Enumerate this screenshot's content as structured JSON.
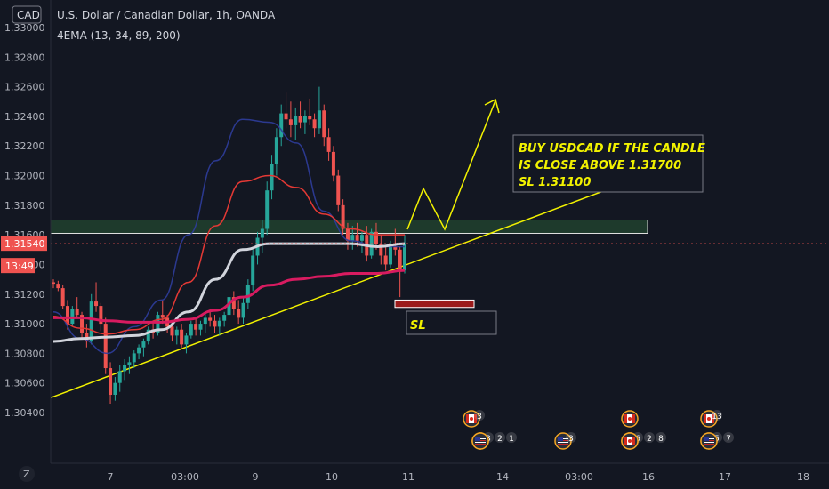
{
  "header": {
    "symbol_badge": "CAD",
    "title": "U.S. Dollar / Canadian Dollar, 1h, OANDA",
    "indicator": "4EMA (13, 34, 89, 200)"
  },
  "annotation": {
    "line1": "BUY USDCAD IF THE CANDLE",
    "line2": "IS CLOSE ABOVE  1.31700",
    "line3": "SL 1.31100",
    "sl_label": "SL"
  },
  "price_badges": {
    "last_price": "1.31540",
    "countdown": "13:49"
  },
  "footer": {
    "tv_logo": "Z"
  },
  "events": [
    {
      "label": "3",
      "slot": 0
    },
    {
      "label": "3",
      "slot": 1
    },
    {
      "label": "2",
      "slot": 1
    },
    {
      "label": "1",
      "slot": 1
    },
    {
      "label": "3",
      "slot": 2
    },
    {
      "label": "6",
      "slot": 3
    },
    {
      "label": "2",
      "slot": 3
    },
    {
      "label": "8",
      "slot": 3
    },
    {
      "label": "13",
      "slot": 4
    },
    {
      "label": "5",
      "slot": 5
    },
    {
      "label": "7",
      "slot": 5
    }
  ],
  "colors": {
    "background": "#131722",
    "candle_up": "#26a69a",
    "candle_down": "#ef5350",
    "ema13": "#2f3d9c",
    "ema34": "#e53935",
    "ema89": "#d1d4dc",
    "ema200": "#d81b60",
    "trendline": "#f2f200",
    "zone": "#1e3a2c",
    "last_price": "#ef5350"
  },
  "chart_data": {
    "type": "candlestick",
    "timeframe": "1h",
    "x_ticks": [
      "7",
      "03:00",
      "9",
      "10",
      "11",
      "14",
      "03:00",
      "16",
      "17",
      "18"
    ],
    "y_ticks": [
      1.33,
      1.328,
      1.326,
      1.324,
      1.322,
      1.32,
      1.318,
      1.316,
      1.314,
      1.312,
      1.31,
      1.308,
      1.306,
      1.304
    ],
    "y_tick_labels": [
      "1.33000",
      "1.32800",
      "1.32600",
      "1.32400",
      "1.32200",
      "1.32000",
      "1.31800",
      "1.31600",
      "1.31400",
      "1.31200",
      "1.31000",
      "1.30800",
      "1.30600",
      "1.30400"
    ],
    "ylim": [
      1.3022,
      1.3312
    ],
    "last_price": 1.3154,
    "grid": false,
    "candles": [
      [
        1.3128,
        1.313,
        1.3124,
        1.3127
      ],
      [
        1.3127,
        1.3129,
        1.3122,
        1.3124
      ],
      [
        1.3124,
        1.3126,
        1.311,
        1.3112
      ],
      [
        1.3112,
        1.3116,
        1.3096,
        1.31
      ],
      [
        1.31,
        1.3112,
        1.3098,
        1.311
      ],
      [
        1.311,
        1.3118,
        1.3104,
        1.3106
      ],
      [
        1.3106,
        1.3108,
        1.309,
        1.3094
      ],
      [
        1.3094,
        1.31,
        1.3084,
        1.3088
      ],
      [
        1.3088,
        1.312,
        1.3086,
        1.3115
      ],
      [
        1.3115,
        1.3128,
        1.3108,
        1.3112
      ],
      [
        1.3112,
        1.3114,
        1.3095,
        1.31
      ],
      [
        1.31,
        1.3104,
        1.3066,
        1.307
      ],
      [
        1.307,
        1.3074,
        1.3046,
        1.3052
      ],
      [
        1.3052,
        1.3064,
        1.3048,
        1.306
      ],
      [
        1.306,
        1.3072,
        1.3054,
        1.3068
      ],
      [
        1.3068,
        1.3076,
        1.3062,
        1.3072
      ],
      [
        1.3072,
        1.3078,
        1.3066,
        1.3074
      ],
      [
        1.3074,
        1.3082,
        1.307,
        1.308
      ],
      [
        1.308,
        1.3086,
        1.3076,
        1.3084
      ],
      [
        1.3084,
        1.309,
        1.3078,
        1.3088
      ],
      [
        1.3088,
        1.3098,
        1.3086,
        1.3096
      ],
      [
        1.3096,
        1.3102,
        1.309,
        1.3094
      ],
      [
        1.3094,
        1.3108,
        1.3092,
        1.3106
      ],
      [
        1.3106,
        1.3116,
        1.31,
        1.3104
      ],
      [
        1.3104,
        1.3106,
        1.3094,
        1.3098
      ],
      [
        1.3098,
        1.31,
        1.3088,
        1.3092
      ],
      [
        1.3092,
        1.3098,
        1.3086,
        1.3096
      ],
      [
        1.3096,
        1.31,
        1.3084,
        1.3086
      ],
      [
        1.3086,
        1.3094,
        1.308,
        1.3092
      ],
      [
        1.3092,
        1.3102,
        1.309,
        1.31
      ],
      [
        1.31,
        1.3104,
        1.3092,
        1.3096
      ],
      [
        1.3096,
        1.3102,
        1.3092,
        1.31
      ],
      [
        1.31,
        1.3108,
        1.3094,
        1.3104
      ],
      [
        1.3104,
        1.311,
        1.3098,
        1.3102
      ],
      [
        1.3102,
        1.3106,
        1.3094,
        1.3098
      ],
      [
        1.3098,
        1.3104,
        1.3092,
        1.3102
      ],
      [
        1.3102,
        1.3108,
        1.3098,
        1.3106
      ],
      [
        1.3106,
        1.3122,
        1.3102,
        1.3118
      ],
      [
        1.3118,
        1.3122,
        1.3106,
        1.311
      ],
      [
        1.311,
        1.3116,
        1.31,
        1.3104
      ],
      [
        1.3104,
        1.3118,
        1.31,
        1.3114
      ],
      [
        1.3114,
        1.313,
        1.311,
        1.3126
      ],
      [
        1.3126,
        1.315,
        1.3122,
        1.3146
      ],
      [
        1.3146,
        1.3162,
        1.314,
        1.3158
      ],
      [
        1.3158,
        1.317,
        1.3148,
        1.3164
      ],
      [
        1.3164,
        1.3196,
        1.316,
        1.319
      ],
      [
        1.319,
        1.3214,
        1.3184,
        1.3208
      ],
      [
        1.3208,
        1.3232,
        1.32,
        1.3226
      ],
      [
        1.3226,
        1.3248,
        1.322,
        1.3242
      ],
      [
        1.3242,
        1.3256,
        1.3232,
        1.3238
      ],
      [
        1.3238,
        1.325,
        1.3226,
        1.3234
      ],
      [
        1.3234,
        1.3246,
        1.3224,
        1.324
      ],
      [
        1.324,
        1.325,
        1.3232,
        1.3236
      ],
      [
        1.3236,
        1.3244,
        1.3228,
        1.324
      ],
      [
        1.324,
        1.3252,
        1.3234,
        1.3238
      ],
      [
        1.3238,
        1.3242,
        1.3226,
        1.3232
      ],
      [
        1.3232,
        1.326,
        1.3228,
        1.3244
      ],
      [
        1.3244,
        1.3248,
        1.322,
        1.3226
      ],
      [
        1.3226,
        1.3232,
        1.321,
        1.3216
      ],
      [
        1.3216,
        1.322,
        1.3196,
        1.32
      ],
      [
        1.32,
        1.3204,
        1.3176,
        1.318
      ],
      [
        1.318,
        1.3184,
        1.316,
        1.3164
      ],
      [
        1.3164,
        1.3168,
        1.315,
        1.3156
      ],
      [
        1.3156,
        1.3166,
        1.315,
        1.316
      ],
      [
        1.316,
        1.3168,
        1.3152,
        1.3156
      ],
      [
        1.3156,
        1.3162,
        1.3148,
        1.316
      ],
      [
        1.316,
        1.3166,
        1.3142,
        1.3146
      ],
      [
        1.3146,
        1.3164,
        1.3144,
        1.3162
      ],
      [
        1.3162,
        1.3168,
        1.315,
        1.3154
      ],
      [
        1.3154,
        1.316,
        1.314,
        1.3146
      ],
      [
        1.3146,
        1.3152,
        1.3136,
        1.314
      ],
      [
        1.314,
        1.3156,
        1.3138,
        1.3152
      ],
      [
        1.3152,
        1.3164,
        1.3146,
        1.315
      ],
      [
        1.315,
        1.3152,
        1.3118,
        1.3136
      ],
      [
        1.3136,
        1.316,
        1.3134,
        1.3154
      ]
    ],
    "series": [
      {
        "ema": 13,
        "values": [
          1.3108,
          1.309,
          1.308,
          1.3098,
          1.3116,
          1.316,
          1.321,
          1.3238,
          1.3236,
          1.3222,
          1.3176,
          1.3156,
          1.3152,
          1.3152
        ]
      },
      {
        "ema": 34,
        "values": [
          1.3105,
          1.3097,
          1.3093,
          1.3096,
          1.3103,
          1.3128,
          1.3166,
          1.3196,
          1.32,
          1.3192,
          1.3174,
          1.3164,
          1.316,
          1.316
        ]
      },
      {
        "ema": 89,
        "values": [
          1.3088,
          1.309,
          1.3091,
          1.3092,
          1.3096,
          1.3108,
          1.313,
          1.315,
          1.3154,
          1.3154,
          1.3154,
          1.3154,
          1.3152,
          1.3154
        ]
      },
      {
        "ema": 200,
        "values": [
          1.3104,
          1.3104,
          1.3102,
          1.3101,
          1.3101,
          1.3103,
          1.3109,
          1.3118,
          1.3126,
          1.313,
          1.3132,
          1.3134,
          1.3134,
          1.3136
        ]
      }
    ],
    "zones": [
      {
        "name": "entry",
        "y_top": 1.317,
        "y_bottom": 1.3161
      },
      {
        "name": "sl",
        "y_top": 1.3116,
        "y_bottom": 1.3111
      }
    ],
    "trendline": [
      [
        0,
        1.305
      ],
      [
        1,
        1.3194
      ]
    ]
  }
}
